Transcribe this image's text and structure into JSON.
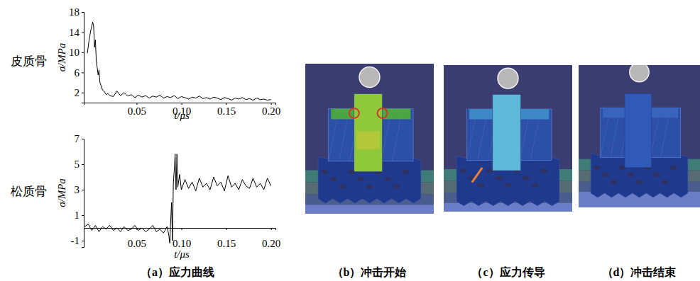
{
  "chart_data": [
    {
      "type": "line",
      "title": "皮质骨",
      "x_label": "t/μs",
      "y_label": "σ/MPa",
      "color": "#000000",
      "x": [
        -0.005,
        -0.003,
        -0.001,
        0.001,
        0.002,
        0.003,
        0.004,
        0.005,
        0.006,
        0.007,
        0.008,
        0.009,
        0.01,
        0.012,
        0.014,
        0.016,
        0.018,
        0.02,
        0.024,
        0.028,
        0.032,
        0.036,
        0.04,
        0.044,
        0.048,
        0.052,
        0.056,
        0.06,
        0.064,
        0.068,
        0.072,
        0.076,
        0.08,
        0.084,
        0.088,
        0.092,
        0.096,
        0.1,
        0.104,
        0.108,
        0.112,
        0.116,
        0.12,
        0.124,
        0.128,
        0.132,
        0.136,
        0.14,
        0.144,
        0.148,
        0.152,
        0.156,
        0.16,
        0.164,
        0.168,
        0.172,
        0.176,
        0.18,
        0.184,
        0.188,
        0.192,
        0.196,
        0.2
      ],
      "values": [
        9.8,
        12.5,
        14.5,
        16,
        15.2,
        11,
        12.5,
        8,
        7,
        5.5,
        6.5,
        4,
        3.5,
        2.5,
        2.2,
        1.6,
        1.8,
        1.4,
        1.2,
        2.3,
        1.4,
        2.0,
        1.3,
        1.6,
        1.0,
        1.5,
        1.1,
        1.4,
        0.9,
        1.3,
        1.1,
        1.5,
        0.9,
        1.2,
        1.0,
        1.4,
        0.8,
        1.2,
        1.0,
        0.7,
        1.1,
        0.9,
        1.3,
        0.8,
        1.0,
        0.7,
        1.1,
        0.9,
        0.6,
        1.0,
        0.8,
        0.5,
        0.9,
        0.7,
        1.0,
        0.6,
        0.8,
        0.5,
        0.9,
        0.6,
        0.7,
        0.5,
        0.6
      ],
      "xlim": [
        -0.009,
        0.205
      ],
      "ylim": [
        0,
        18
      ],
      "xticks": [
        0.05,
        {
          "value": 0.1,
          "label": "0.10"
        },
        0.15,
        {
          "value": 0.2,
          "label": "0.20"
        }
      ],
      "yticks": [
        2,
        6,
        10,
        14,
        18
      ]
    },
    {
      "type": "line",
      "title": "松质骨",
      "x_label": "t/μs",
      "y_label": "σ/MPa",
      "color": "#000000",
      "x": [
        -0.008,
        -0.004,
        0,
        0.004,
        0.008,
        0.012,
        0.016,
        0.02,
        0.024,
        0.028,
        0.032,
        0.036,
        0.04,
        0.044,
        0.048,
        0.052,
        0.056,
        0.06,
        0.064,
        0.068,
        0.072,
        0.076,
        0.08,
        0.084,
        0.086,
        0.087,
        0.088,
        0.089,
        0.09,
        0.091,
        0.092,
        0.093,
        0.094,
        0.095,
        0.096,
        0.098,
        0.1,
        0.104,
        0.108,
        0.112,
        0.116,
        0.12,
        0.124,
        0.128,
        0.132,
        0.136,
        0.14,
        0.144,
        0.148,
        0.152,
        0.156,
        0.16,
        0.164,
        0.168,
        0.172,
        0.176,
        0.18,
        0.184,
        0.188,
        0.192,
        0.196,
        0.2
      ],
      "values": [
        0.1,
        0.3,
        -0.2,
        0.2,
        -0.3,
        0.1,
        -0.1,
        0.2,
        -0.2,
        0,
        -0.3,
        0.1,
        -0.2,
        -0.1,
        0.2,
        -0.2,
        0,
        -0.3,
        -0.1,
        0.2,
        -0.3,
        -0.1,
        -0.4,
        0.1,
        -0.6,
        -1.2,
        0.5,
        2.0,
        -1.0,
        3.5,
        4.5,
        5.8,
        3.0,
        5.8,
        3.2,
        4.2,
        3.0,
        3.8,
        3.1,
        3.6,
        2.9,
        3.9,
        3.2,
        3.5,
        3.0,
        4.0,
        3.3,
        3.6,
        2.9,
        4.1,
        3.2,
        3.5,
        3.0,
        3.8,
        3.3,
        3.1,
        3.9,
        3.2,
        3.5,
        3.0,
        3.9,
        3.3
      ],
      "xlim": [
        -0.009,
        0.205
      ],
      "ylim": [
        -1.5,
        7
      ],
      "xticks": [
        0.05,
        {
          "value": 0.1,
          "label": "0.10"
        },
        0.15,
        {
          "value": 0.2,
          "label": "0.20"
        }
      ],
      "yticks": [
        -1,
        1,
        3,
        5,
        7
      ]
    }
  ],
  "panels": [
    {
      "caption": "（a）应力曲线"
    },
    {
      "caption": "（b）冲击开始"
    },
    {
      "caption": "（c）应力传导"
    },
    {
      "caption": "（d）冲击结束"
    }
  ]
}
